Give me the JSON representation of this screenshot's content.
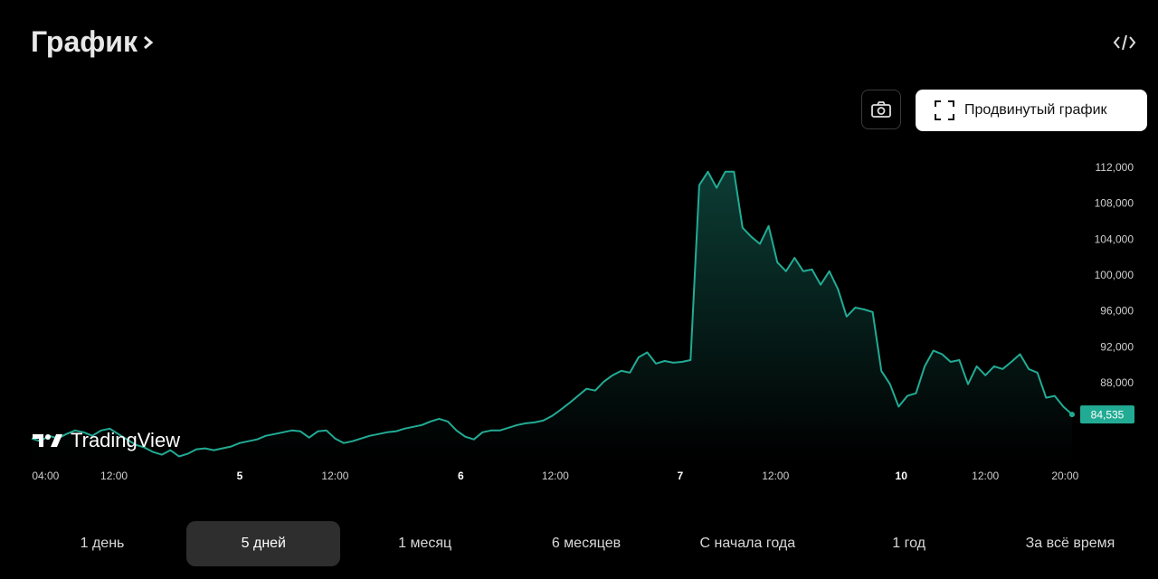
{
  "header": {
    "title": "График"
  },
  "buttons": {
    "advanced": "Продвинутый график"
  },
  "logo": "TradingView",
  "ranges": {
    "items": [
      "1 день",
      "5 дней",
      "1 месяц",
      "6 месяцев",
      "С начала года",
      "1 год",
      "За всё время"
    ],
    "active": 1
  },
  "chart_data": {
    "type": "area",
    "color": "#22ab94",
    "x": [
      0,
      1,
      2,
      3,
      4,
      5,
      6,
      7,
      8,
      9,
      10,
      11,
      12,
      13,
      14,
      15,
      16,
      17,
      18,
      19,
      20,
      21,
      22,
      23,
      24,
      25,
      26,
      27,
      28,
      29,
      30,
      31,
      32,
      33,
      34,
      35,
      36,
      37,
      38,
      39,
      40,
      41,
      42,
      43,
      44,
      45,
      46,
      47,
      48,
      49,
      50,
      51,
      52,
      53,
      54,
      55,
      56,
      57,
      58,
      59,
      60,
      61,
      62,
      63,
      64,
      65,
      66,
      67,
      68,
      69,
      70,
      71,
      72,
      73,
      74,
      75,
      76,
      77,
      78,
      79,
      80,
      81,
      82,
      83,
      84,
      85,
      86,
      87,
      88,
      89,
      90,
      91,
      92,
      93,
      94,
      95,
      96,
      97,
      98,
      99,
      100,
      101,
      102,
      103,
      104,
      105,
      106,
      107,
      108,
      109,
      110,
      111,
      112,
      113,
      114,
      115,
      116,
      117,
      118,
      119,
      120
    ],
    "values": [
      81850,
      81550,
      82150,
      81850,
      82350,
      82750,
      82550,
      82150,
      82750,
      82950,
      82350,
      81750,
      81150,
      80850,
      80350,
      80050,
      80550,
      79850,
      80150,
      80650,
      80750,
      80550,
      80750,
      80950,
      81350,
      81550,
      81750,
      82150,
      82350,
      82550,
      82750,
      82650,
      81950,
      82650,
      82750,
      81850,
      81350,
      81550,
      81850,
      82150,
      82350,
      82550,
      82650,
      82950,
      83150,
      83350,
      83750,
      84050,
      83750,
      82750,
      82050,
      81750,
      82550,
      82750,
      82750,
      83050,
      83350,
      83550,
      83650,
      83850,
      84350,
      85050,
      85800,
      86600,
      87400,
      87200,
      88200,
      88900,
      89400,
      89200,
      90900,
      91450,
      90200,
      90500,
      90300,
      90400,
      90600,
      110100,
      111600,
      109800,
      111600,
      111600,
      105350,
      104350,
      103550,
      105550,
      101500,
      100500,
      102000,
      100500,
      100700,
      99000,
      100500,
      98500,
      95450,
      96450,
      96250,
      95950,
      89400,
      87900,
      85400,
      86600,
      86900,
      89900,
      91650,
      91250,
      90400,
      90600,
      87900,
      89900,
      88900,
      89900,
      89600,
      90400,
      91250,
      89600,
      89200,
      86400,
      86600,
      85400,
      84535
    ],
    "price_label": "84,535",
    "xlim": [
      0,
      120
    ],
    "xticks": [
      {
        "value": 1.6,
        "label": "04:00"
      },
      {
        "value": 9.5,
        "label": "12:00"
      },
      {
        "value": 24,
        "label": "5"
      },
      {
        "value": 35,
        "label": "12:00"
      },
      {
        "value": 49.5,
        "label": "6"
      },
      {
        "value": 60.4,
        "label": "12:00"
      },
      {
        "value": 74.8,
        "label": "7"
      },
      {
        "value": 85.8,
        "label": "12:00"
      },
      {
        "value": 100.3,
        "label": "10"
      },
      {
        "value": 110,
        "label": "12:00"
      },
      {
        "value": 119.2,
        "label": "20:00"
      }
    ],
    "ylim": [
      79300,
      114100
    ],
    "yticks": [
      {
        "value": 88000,
        "label": "88,000"
      },
      {
        "value": 92000,
        "label": "92,000"
      },
      {
        "value": 96000,
        "label": "96,000"
      },
      {
        "value": 100000,
        "label": "100,000"
      },
      {
        "value": 104000,
        "label": "104,000"
      },
      {
        "value": 108000,
        "label": "108,000"
      },
      {
        "value": 112000,
        "label": "112,000"
      }
    ],
    "grid": false
  }
}
